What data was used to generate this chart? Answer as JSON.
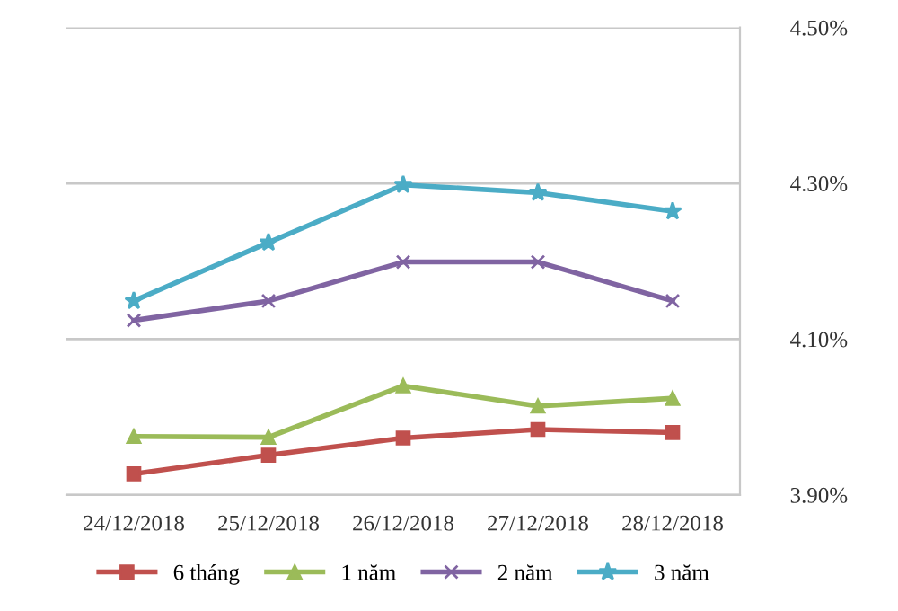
{
  "chart_data": {
    "type": "line",
    "categories": [
      "24/12/2018",
      "25/12/2018",
      "26/12/2018",
      "27/12/2018",
      "28/12/2018"
    ],
    "series": [
      {
        "name": "6 tháng",
        "color": "#c0504d",
        "marker": "square",
        "values": [
          3.927,
          3.951,
          3.973,
          3.984,
          3.98
        ]
      },
      {
        "name": "1 năm",
        "color": "#9bbb59",
        "marker": "triangle",
        "values": [
          3.975,
          3.974,
          4.04,
          4.014,
          4.024
        ]
      },
      {
        "name": "2 năm",
        "color": "#8064a2",
        "marker": "cross",
        "values": [
          4.124,
          4.149,
          4.199,
          4.199,
          4.149
        ]
      },
      {
        "name": "3 năm",
        "color": "#4bacc6",
        "marker": "star",
        "values": [
          4.149,
          4.224,
          4.298,
          4.288,
          4.264
        ]
      }
    ],
    "ylim": [
      3.9,
      4.5
    ],
    "yticks": [
      {
        "value": 3.9,
        "label": "3.90%"
      },
      {
        "value": 4.1,
        "label": "4.10%"
      },
      {
        "value": 4.3,
        "label": "4.30%"
      },
      {
        "value": 4.5,
        "label": "4.50%"
      }
    ],
    "grid": "y",
    "legend": "bottom",
    "line_style": "solid"
  }
}
